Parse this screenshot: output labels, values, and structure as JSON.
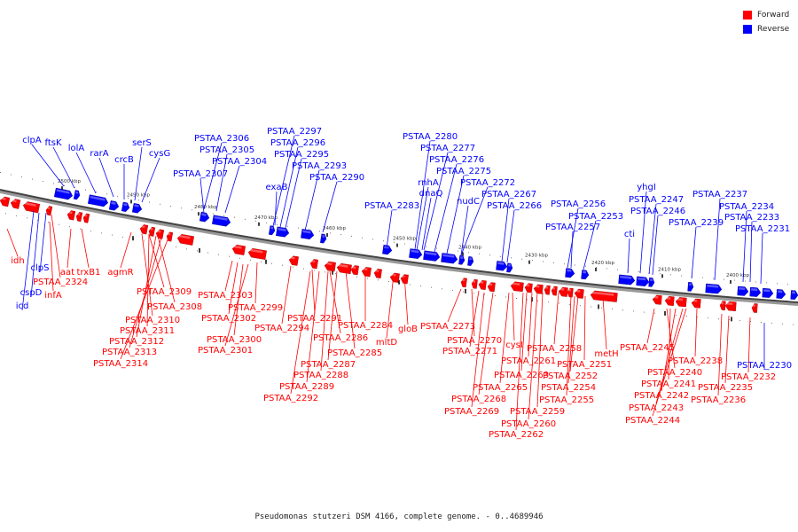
{
  "legend": {
    "forward_label": "Forward",
    "reverse_label": "Reverse",
    "forward_color": "#ff0000",
    "reverse_color": "#0000ff"
  },
  "caption": "Pseudomonas stutzeri DSM 4166, complete genome. - 0..4689946",
  "axis": {
    "ticks": [
      "2500 kbp",
      "2490 kbp",
      "2480 kbp",
      "2470 kbp",
      "2460 kbp",
      "2450 kbp",
      "2440 kbp",
      "2430 kbp",
      "2420 kbp",
      "2410 kbp",
      "2400 kbp"
    ]
  },
  "genes": {
    "reverse": [
      "clpA",
      "ftsK",
      "lolA",
      "rarA",
      "crcB",
      "serS",
      "cysG",
      "PSTAA_2306",
      "PSTAA_2305",
      "PSTAA_2304",
      "PSTAA_2307",
      "PSTAA_2297",
      "PSTAA_2296",
      "PSTAA_2295",
      "PSTAA_2293",
      "PSTAA_2290",
      "exaB",
      "PSTAA_2280",
      "PSTAA_2277",
      "PSTAA_2276",
      "PSTAA_2275",
      "rnhA",
      "dnaQ",
      "PSTAA_2272",
      "nudC",
      "PSTAA_2267",
      "PSTAA_2266",
      "PSTAA_2283",
      "PSTAA_2256",
      "PSTAA_2253",
      "PSTAA_2257",
      "yhgI",
      "PSTAA_2247",
      "PSTAA_2246",
      "cti",
      "PSTAA_2237",
      "PSTAA_2234",
      "PSTAA_2233",
      "PSTAA_2239",
      "PSTAA_2231",
      "clpS",
      "cspD",
      "icd",
      "PSTAA_2230"
    ],
    "forward": [
      "idh",
      "aat",
      "trxB1",
      "PSTAA_2324",
      "infA",
      "agmR",
      "PSTAA_2309",
      "PSTAA_2308",
      "PSTAA_2310",
      "PSTAA_2311",
      "PSTAA_2312",
      "PSTAA_2313",
      "PSTAA_2314",
      "PSTAA_2303",
      "PSTAA_2299",
      "PSTAA_2302",
      "PSTAA_2300",
      "PSTAA_2301",
      "PSTAA_2294",
      "PSTAA_2291",
      "PSTAA_2286",
      "PSTAA_2284",
      "PSTAA_2285",
      "PSTAA_2287",
      "PSTAA_2288",
      "PSTAA_2289",
      "PSTAA_2292",
      "mltD",
      "gloB",
      "PSTAA_2273",
      "PSTAA_2270",
      "PSTAA_2271",
      "cysI",
      "PSTAA_2258",
      "PSTAA_2261",
      "PSTAA_2263",
      "PSTAA_2265",
      "PSTAA_2268",
      "PSTAA_2269",
      "PSTAA_2259",
      "PSTAA_2260",
      "PSTAA_2262",
      "PSTAA_2252",
      "PSTAA_2254",
      "PSTAA_2255",
      "PSTAA_2251",
      "metH",
      "PSTAA_2245",
      "PSTAA_2238",
      "PSTAA_2240",
      "PSTAA_2241",
      "PSTAA_2242",
      "PSTAA_2243",
      "PSTAA_2244",
      "PSTAA_2232",
      "PSTAA_2235",
      "PSTAA_2236"
    ]
  }
}
